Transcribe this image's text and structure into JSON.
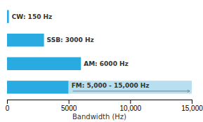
{
  "chart_data": {
    "type": "bar",
    "orientation": "horizontal",
    "stacked": true,
    "categories": [
      null,
      null,
      null,
      null
    ],
    "series": [
      {
        "color": "#29abe2",
        "values": [
          150,
          3000,
          6000,
          5000
        ]
      },
      {
        "color": "#b8dff0",
        "values": [
          null,
          null,
          null,
          10000
        ]
      }
    ],
    "annotations": [
      "CW: 150 Hz",
      "SSB: 3000 Hz",
      "AM: 6000 Hz",
      "FM: 5,000 - 15,000 Hz"
    ],
    "xlabel": "Bandwidth (Hz)",
    "xlim": [
      0,
      15000
    ],
    "xticks": [
      0,
      5000,
      {
        "value": 10000,
        "label": "10,000"
      },
      {
        "value": 15000,
        "label": "15,000"
      }
    ],
    "grid": false,
    "tick_labels": "x"
  }
}
